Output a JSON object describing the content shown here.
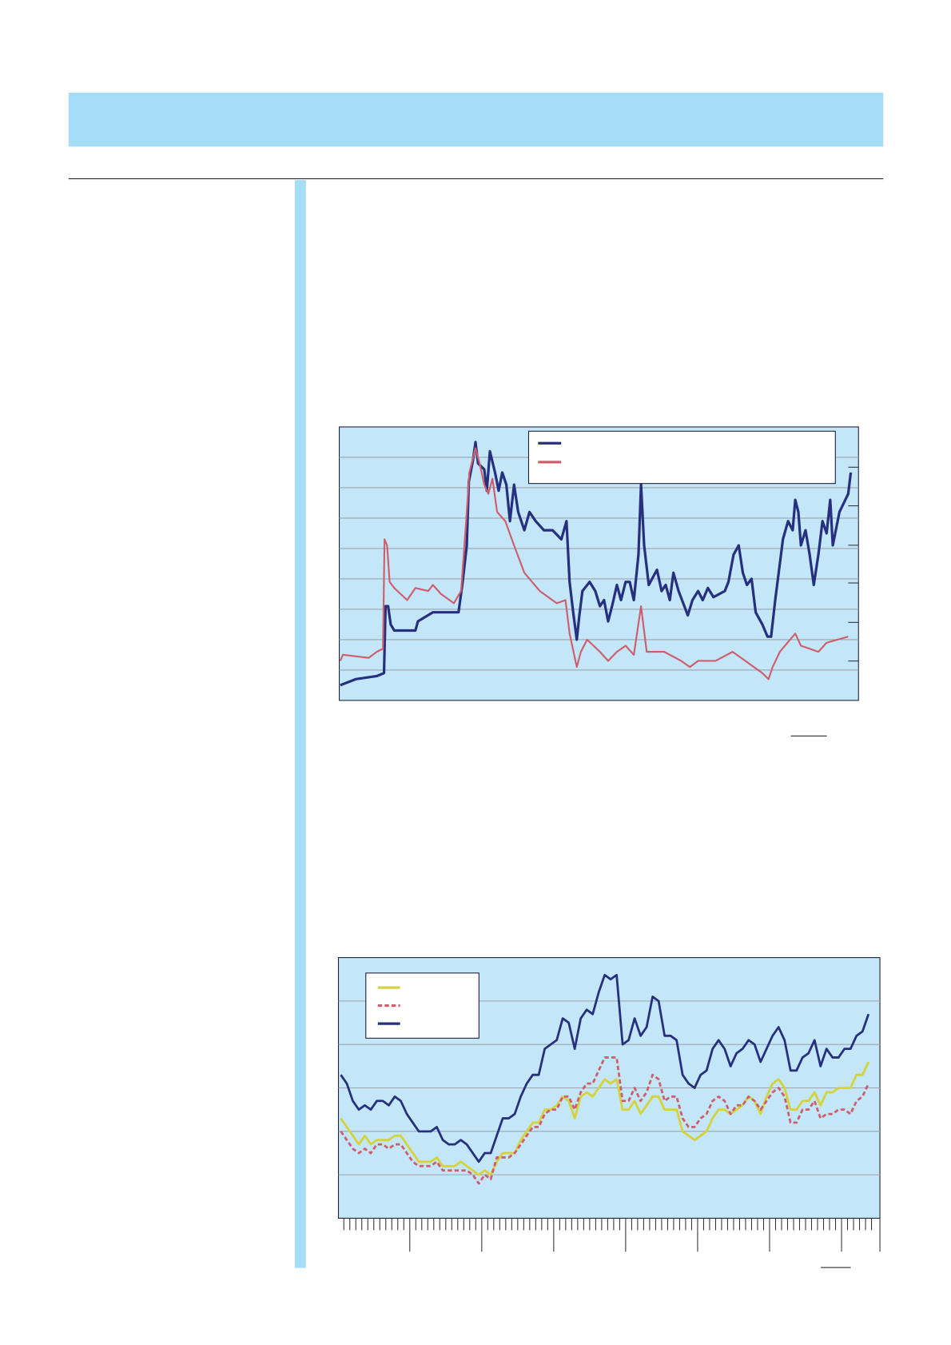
{
  "colors": {
    "band": "#a6ddf6",
    "plot_bg": "#c3e6f8",
    "navy": "#27307f",
    "red": "#cf5e6c",
    "yellow": "#d6d23a",
    "grid": "#9aa5ad"
  },
  "chart_data": [
    {
      "type": "line",
      "title": "",
      "xlabel": "",
      "ylabel": "",
      "xlim": [
        0,
        101
      ],
      "ylim": [
        0,
        9
      ],
      "grid": true,
      "legend": "top-right",
      "series": [
        {
          "style": "solid",
          "color": "#27307f",
          "points": [
            [
              0.2,
              0.5
            ],
            [
              3.2,
              0.7
            ],
            [
              7.3,
              0.8
            ],
            [
              8.7,
              0.9
            ],
            [
              9.0,
              3.1
            ],
            [
              9.5,
              3.1
            ],
            [
              10.0,
              2.5
            ],
            [
              10.7,
              2.3
            ],
            [
              14.8,
              2.3
            ],
            [
              15.3,
              2.6
            ],
            [
              18.2,
              2.9
            ],
            [
              23.2,
              2.9
            ],
            [
              24.0,
              3.9
            ],
            [
              24.8,
              5.1
            ],
            [
              25.2,
              7.2
            ],
            [
              26.0,
              7.9
            ],
            [
              26.5,
              8.5
            ],
            [
              27.0,
              7.8
            ],
            [
              28.2,
              7.6
            ],
            [
              28.7,
              6.9
            ],
            [
              29.3,
              8.2
            ],
            [
              30.3,
              7.5
            ],
            [
              31.0,
              6.9
            ],
            [
              31.7,
              7.5
            ],
            [
              32.5,
              7.1
            ],
            [
              33.2,
              5.9
            ],
            [
              34.0,
              7.1
            ],
            [
              34.8,
              6.2
            ],
            [
              36.0,
              5.6
            ],
            [
              37.0,
              6.2
            ],
            [
              38.2,
              5.9
            ],
            [
              39.8,
              5.6
            ],
            [
              41.5,
              5.6
            ],
            [
              43.2,
              5.3
            ],
            [
              44.2,
              5.9
            ],
            [
              44.8,
              3.9
            ],
            [
              45.5,
              2.9
            ],
            [
              46.2,
              2.0
            ],
            [
              46.7,
              2.8
            ],
            [
              47.3,
              3.6
            ],
            [
              48.7,
              3.9
            ],
            [
              49.8,
              3.6
            ],
            [
              50.7,
              3.1
            ],
            [
              51.5,
              3.3
            ],
            [
              52.3,
              2.6
            ],
            [
              53.2,
              3.2
            ],
            [
              54.0,
              3.8
            ],
            [
              54.8,
              3.3
            ],
            [
              55.7,
              3.9
            ],
            [
              56.5,
              3.9
            ],
            [
              57.3,
              3.3
            ],
            [
              58.2,
              4.8
            ],
            [
              58.7,
              7.1
            ],
            [
              59.3,
              5.1
            ],
            [
              60.2,
              3.8
            ],
            [
              61.8,
              4.3
            ],
            [
              62.7,
              3.6
            ],
            [
              63.5,
              3.8
            ],
            [
              64.3,
              3.3
            ],
            [
              65.0,
              4.2
            ],
            [
              66.0,
              3.6
            ],
            [
              67.8,
              2.8
            ],
            [
              68.7,
              3.3
            ],
            [
              69.8,
              3.6
            ],
            [
              70.7,
              3.3
            ],
            [
              71.7,
              3.7
            ],
            [
              72.8,
              3.4
            ],
            [
              75.0,
              3.6
            ],
            [
              75.7,
              3.9
            ],
            [
              76.7,
              4.8
            ],
            [
              77.7,
              5.1
            ],
            [
              78.5,
              4.2
            ],
            [
              79.3,
              3.8
            ],
            [
              80.2,
              4.0
            ],
            [
              81.0,
              2.9
            ],
            [
              82.3,
              2.5
            ],
            [
              83.3,
              2.1
            ],
            [
              84.0,
              2.1
            ],
            [
              84.8,
              3.3
            ],
            [
              85.7,
              4.5
            ],
            [
              86.3,
              5.3
            ],
            [
              87.3,
              5.9
            ],
            [
              88.2,
              5.6
            ],
            [
              88.7,
              6.6
            ],
            [
              89.3,
              6.2
            ],
            [
              89.8,
              5.1
            ],
            [
              90.7,
              5.6
            ],
            [
              91.5,
              4.8
            ],
            [
              92.3,
              3.8
            ],
            [
              93.2,
              4.8
            ],
            [
              94.0,
              5.9
            ],
            [
              94.8,
              5.5
            ],
            [
              95.5,
              6.6
            ],
            [
              96.0,
              5.1
            ],
            [
              97.3,
              6.2
            ],
            [
              99.0,
              6.8
            ],
            [
              99.5,
              7.5
            ]
          ]
        },
        {
          "style": "solid-thin-dash-gaps",
          "color": "#cf5e6c",
          "points": [
            [
              0.2,
              1.3
            ],
            [
              0.7,
              1.5
            ],
            [
              5.7,
              1.4
            ],
            [
              7.3,
              1.6
            ],
            [
              8.5,
              1.7
            ],
            [
              8.8,
              5.3
            ],
            [
              9.3,
              5.1
            ],
            [
              9.8,
              3.9
            ],
            [
              10.7,
              3.7
            ],
            [
              13.2,
              3.3
            ],
            [
              14.8,
              3.7
            ],
            [
              17.3,
              3.6
            ],
            [
              18.2,
              3.8
            ],
            [
              19.8,
              3.5
            ],
            [
              22.3,
              3.2
            ],
            [
              23.7,
              3.6
            ],
            [
              24.8,
              6.2
            ],
            [
              25.3,
              7.5
            ],
            [
              26.5,
              8.3
            ],
            [
              27.3,
              7.8
            ],
            [
              28.2,
              7.1
            ],
            [
              29.0,
              6.8
            ],
            [
              29.8,
              7.3
            ],
            [
              30.7,
              6.2
            ],
            [
              32.3,
              5.9
            ],
            [
              34.0,
              5.1
            ],
            [
              36.0,
              4.2
            ],
            [
              39.0,
              3.6
            ],
            [
              42.3,
              3.2
            ],
            [
              44.0,
              3.3
            ],
            [
              44.8,
              2.2
            ],
            [
              46.2,
              1.1
            ],
            [
              47.0,
              1.6
            ],
            [
              48.2,
              2.0
            ],
            [
              50.7,
              1.6
            ],
            [
              52.3,
              1.3
            ],
            [
              54.0,
              1.6
            ],
            [
              55.7,
              1.8
            ],
            [
              57.3,
              1.5
            ],
            [
              58.7,
              3.1
            ],
            [
              59.8,
              1.6
            ],
            [
              63.2,
              1.6
            ],
            [
              66.5,
              1.3
            ],
            [
              68.2,
              1.1
            ],
            [
              69.8,
              1.3
            ],
            [
              73.2,
              1.3
            ],
            [
              76.5,
              1.6
            ],
            [
              79.0,
              1.3
            ],
            [
              82.3,
              0.9
            ],
            [
              83.5,
              0.7
            ],
            [
              84.3,
              1.1
            ],
            [
              85.7,
              1.6
            ],
            [
              88.7,
              2.2
            ],
            [
              89.8,
              1.8
            ],
            [
              93.2,
              1.6
            ],
            [
              94.8,
              1.9
            ],
            [
              99.0,
              2.1
            ]
          ]
        }
      ]
    },
    {
      "type": "line",
      "title": "",
      "xlabel": "",
      "ylabel": "",
      "xlim": [
        -0.4,
        89.9
      ],
      "ylim": [
        0,
        6
      ],
      "grid": true,
      "legend": "top-left",
      "x_major_every": 12,
      "series": [
        {
          "style": "solid",
          "color": "#d6d23a",
          "values": [
            2.3,
            2.1,
            1.9,
            1.7,
            1.9,
            1.7,
            1.8,
            1.8,
            1.8,
            1.9,
            1.9,
            1.7,
            1.5,
            1.3,
            1.3,
            1.3,
            1.4,
            1.2,
            1.2,
            1.2,
            1.3,
            1.2,
            1.1,
            1.0,
            1.1,
            1.0,
            1.3,
            1.5,
            1.5,
            1.5,
            1.8,
            2.0,
            2.2,
            2.2,
            2.5,
            2.5,
            2.6,
            2.8,
            2.7,
            2.3,
            2.8,
            2.9,
            2.8,
            3.0,
            3.2,
            3.1,
            3.2,
            2.5,
            2.5,
            2.7,
            2.4,
            2.6,
            2.8,
            2.8,
            2.5,
            2.5,
            2.5,
            2.0,
            1.9,
            1.8,
            1.9,
            2.0,
            2.3,
            2.5,
            2.5,
            2.4,
            2.5,
            2.6,
            2.8,
            2.7,
            2.4,
            2.8,
            3.1,
            3.2,
            3.0,
            2.5,
            2.5,
            2.7,
            2.7,
            2.9,
            2.6,
            2.9,
            2.9,
            3.0,
            3.0,
            3.0,
            3.3,
            3.3,
            3.6
          ]
        },
        {
          "style": "dashed",
          "color": "#cf5e6c",
          "values": [
            2.0,
            1.8,
            1.6,
            1.5,
            1.6,
            1.5,
            1.7,
            1.7,
            1.6,
            1.7,
            1.7,
            1.5,
            1.3,
            1.2,
            1.2,
            1.2,
            1.3,
            1.1,
            1.1,
            1.1,
            1.1,
            1.1,
            1.0,
            0.8,
            1.0,
            0.9,
            1.4,
            1.4,
            1.4,
            1.5,
            1.7,
            1.9,
            2.1,
            2.1,
            2.4,
            2.5,
            2.5,
            2.8,
            2.8,
            2.5,
            2.9,
            3.1,
            3.1,
            3.4,
            3.7,
            3.7,
            3.7,
            2.7,
            2.7,
            3.0,
            2.7,
            2.9,
            3.3,
            3.2,
            2.7,
            2.8,
            2.8,
            2.3,
            2.1,
            2.1,
            2.3,
            2.4,
            2.7,
            2.8,
            2.7,
            2.4,
            2.6,
            2.6,
            2.8,
            2.7,
            2.5,
            2.7,
            2.9,
            3.0,
            2.8,
            2.2,
            2.2,
            2.5,
            2.5,
            2.7,
            2.3,
            2.4,
            2.4,
            2.5,
            2.5,
            2.4,
            2.7,
            2.8,
            3.1
          ]
        },
        {
          "style": "solid",
          "color": "#27307f",
          "values": [
            3.3,
            3.1,
            2.7,
            2.5,
            2.6,
            2.5,
            2.7,
            2.7,
            2.6,
            2.8,
            2.7,
            2.4,
            2.2,
            2.0,
            2.0,
            2.0,
            2.1,
            1.8,
            1.7,
            1.7,
            1.8,
            1.7,
            1.5,
            1.3,
            1.5,
            1.5,
            1.9,
            2.3,
            2.3,
            2.4,
            2.8,
            3.1,
            3.3,
            3.3,
            3.9,
            4.0,
            4.1,
            4.6,
            4.5,
            3.9,
            4.6,
            4.8,
            4.7,
            5.2,
            5.6,
            5.5,
            5.6,
            4.0,
            4.1,
            4.6,
            4.2,
            4.4,
            5.1,
            5.0,
            4.2,
            4.2,
            4.1,
            3.3,
            3.1,
            3.0,
            3.3,
            3.4,
            3.9,
            4.1,
            3.9,
            3.5,
            3.8,
            3.9,
            4.1,
            4.0,
            3.6,
            3.9,
            4.2,
            4.4,
            4.1,
            3.4,
            3.4,
            3.7,
            3.8,
            4.1,
            3.5,
            3.9,
            3.7,
            3.7,
            3.9,
            3.9,
            4.2,
            4.3,
            4.7
          ]
        }
      ]
    }
  ]
}
